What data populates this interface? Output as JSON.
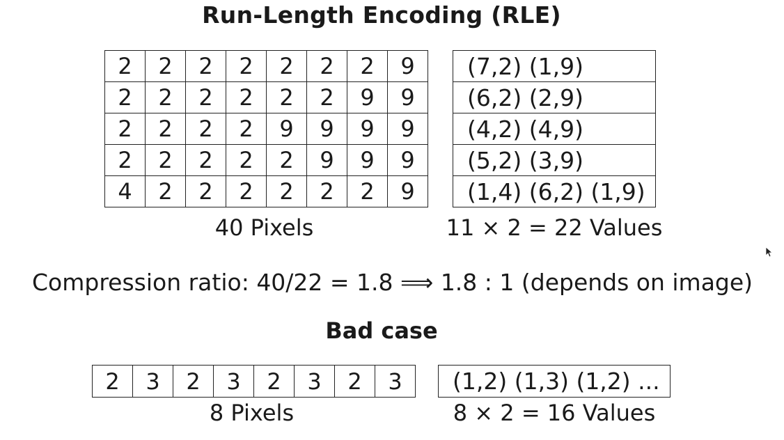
{
  "title": "Run-Length Encoding (RLE)",
  "example": {
    "pixels": [
      [
        "2",
        "2",
        "2",
        "2",
        "2",
        "2",
        "2",
        "9"
      ],
      [
        "2",
        "2",
        "2",
        "2",
        "2",
        "2",
        "9",
        "9"
      ],
      [
        "2",
        "2",
        "2",
        "2",
        "9",
        "9",
        "9",
        "9"
      ],
      [
        "2",
        "2",
        "2",
        "2",
        "2",
        "9",
        "9",
        "9"
      ],
      [
        "4",
        "2",
        "2",
        "2",
        "2",
        "2",
        "2",
        "9"
      ]
    ],
    "encoded_rows": [
      "(7,2) (1,9)",
      "(6,2) (2,9)",
      "(4,2) (4,9)",
      "(5,2) (3,9)",
      "(1,4) (6,2) (1,9)"
    ],
    "pixels_caption": "40 Pixels",
    "values_caption": "11 × 2 = 22 Values"
  },
  "compression_ratio": "Compression ratio: 40/22 = 1.8  ⟹  1.8 : 1 (depends on image)",
  "bad_case": {
    "heading": "Bad case",
    "pixels": [
      "2",
      "3",
      "2",
      "3",
      "2",
      "3",
      "2",
      "3"
    ],
    "encoded": "(1,2) (1,3) (1,2) ...",
    "pixels_caption": "8 Pixels",
    "values_caption": "8 × 2 = 16 Values"
  }
}
